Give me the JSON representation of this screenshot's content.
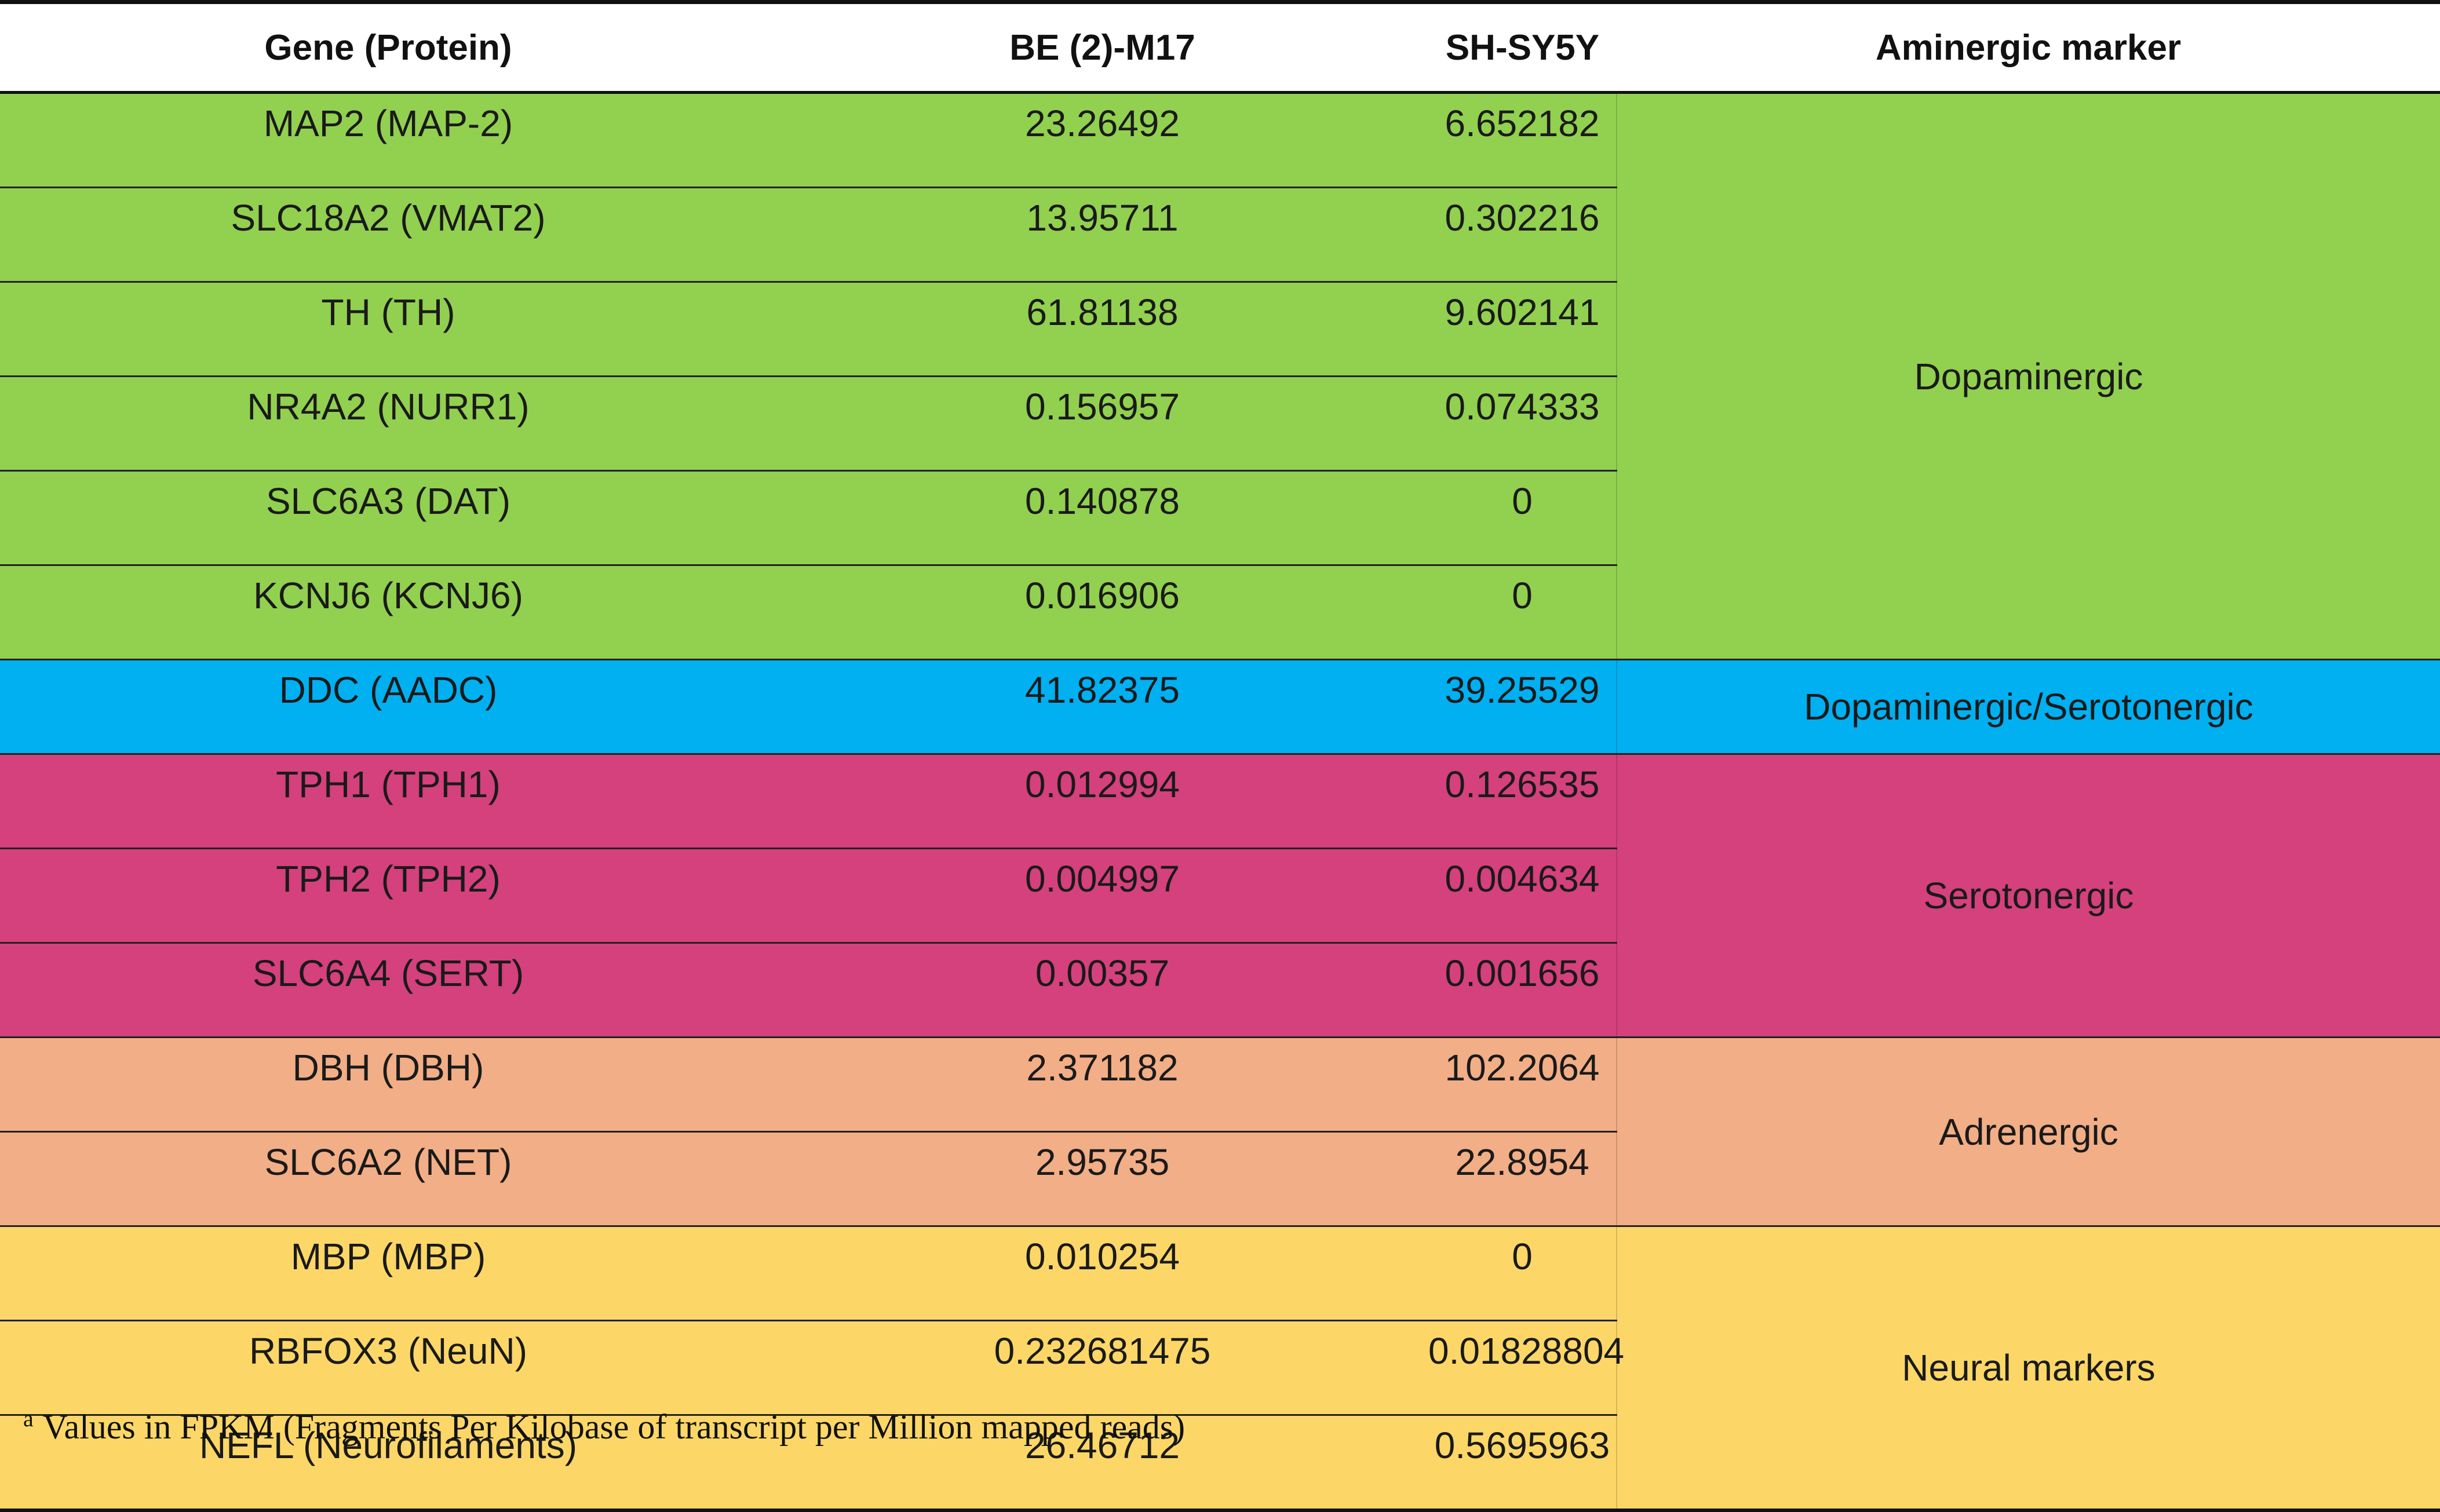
{
  "colors": {
    "Dopaminergic": "#92d050",
    "Dopaminergic/Serotonergic": "#00b0f0",
    "Serotonergic": "#d4417c",
    "Adrenergic": "#f2ae86",
    "Neural markers": "#fcd767"
  },
  "headers": [
    "Gene (Protein)",
    "BE (2)-M17",
    "SH-SY5Y",
    "Aminergic marker"
  ],
  "groups": [
    {
      "marker": "Dopaminergic",
      "rows": [
        [
          "MAP2 (MAP-2)",
          "23.26492",
          "6.652182"
        ],
        [
          "SLC18A2 (VMAT2)",
          "13.95711",
          "0.302216"
        ],
        [
          "TH (TH)",
          "61.81138",
          "9.602141"
        ],
        [
          "NR4A2 (NURR1)",
          "0.156957",
          "0.074333"
        ],
        [
          "SLC6A3 (DAT)",
          "0.140878",
          "0"
        ],
        [
          "KCNJ6 (KCNJ6)",
          "0.016906",
          "0"
        ]
      ]
    },
    {
      "marker": "Dopaminergic/Serotonergic",
      "rows": [
        [
          "DDC (AADC)",
          "41.82375",
          "39.25529"
        ]
      ]
    },
    {
      "marker": "Serotonergic",
      "rows": [
        [
          "TPH1 (TPH1)",
          "0.012994",
          "0.126535"
        ],
        [
          "TPH2 (TPH2)",
          "0.004997",
          "0.004634"
        ],
        [
          "SLC6A4 (SERT)",
          "0.00357",
          "0.001656"
        ]
      ]
    },
    {
      "marker": "Adrenergic",
      "rows": [
        [
          "DBH (DBH)",
          "2.371182",
          "102.2064"
        ],
        [
          "SLC6A2 (NET)",
          "2.95735",
          "22.8954"
        ]
      ]
    },
    {
      "marker": "Neural markers",
      "rows": [
        [
          "MBP (MBP)",
          "0.010254",
          "0"
        ],
        [
          "RBFOX3 (NeuN)",
          "0.232681475",
          "0.01828804"
        ],
        [
          "NEFL (Neurofilaments)",
          "26.46712",
          "0.5695963"
        ]
      ]
    }
  ],
  "footnote": {
    "mark": "a",
    "text": "Values in FPKM (Fragments Per Kilobase of transcript per Million mapped reads)"
  }
}
